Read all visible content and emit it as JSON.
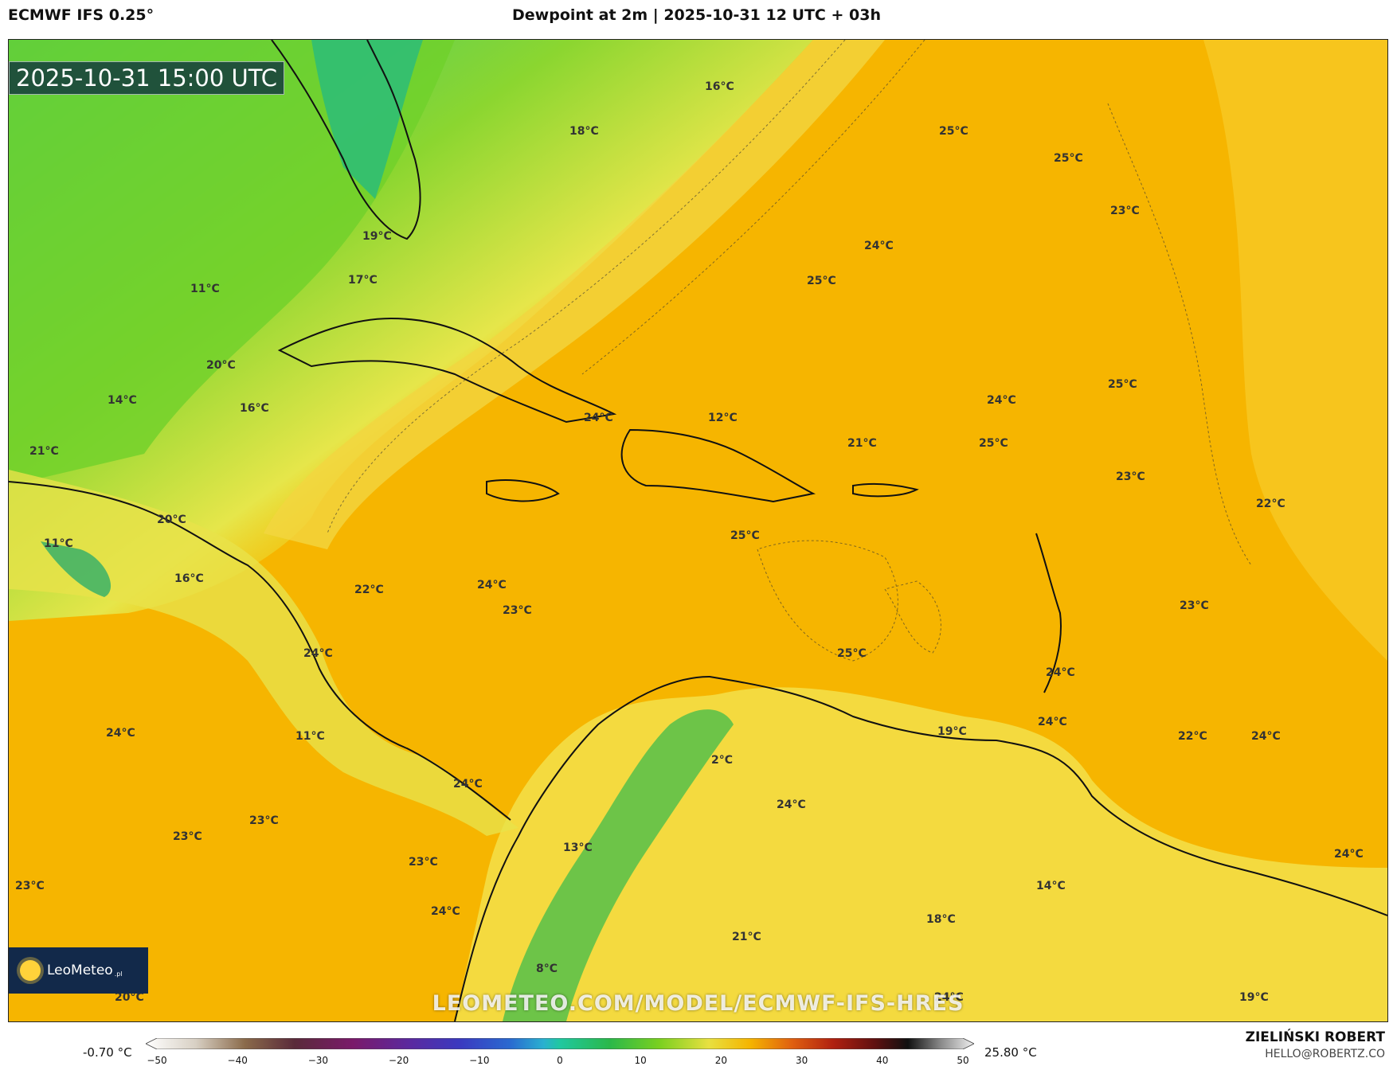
{
  "header": {
    "model": "ECMWF IFS 0.25°",
    "title": "Dewpoint at 2m | 2025-10-31 12 UTC + 03h"
  },
  "map": {
    "valid_time": "2025-10-31 15:00 UTC",
    "watermark": "LEOMETEO.COM/MODEL/ECMWF-IFS-HRES",
    "logo": {
      "name": "LeoMeteo",
      "suffix": ".pl"
    },
    "temperature_labels": [
      "16°C",
      "18°C",
      "25°C",
      "25°C",
      "23°C",
      "19°C",
      "24°C",
      "11°C",
      "25°C",
      "17°C",
      "20°C",
      "14°C",
      "16°C",
      "24°C",
      "12°C",
      "24°C",
      "25°C",
      "21°C",
      "25°C",
      "21°C",
      "23°C",
      "22°C",
      "20°C",
      "25°C",
      "11°C",
      "16°C",
      "22°C",
      "24°C",
      "23°C",
      "24°C",
      "23°C",
      "25°C",
      "24°C",
      "24°C",
      "19°C",
      "24°C",
      "22°C",
      "24°C",
      "11°C",
      "2°C",
      "24°C",
      "24°C",
      "23°C",
      "23°C",
      "13°C",
      "23°C",
      "23°C",
      "24°C",
      "24°C",
      "14°C",
      "18°C",
      "21°C",
      "8°C",
      "20°C",
      "24°C",
      "19°C"
    ]
  },
  "legend": {
    "min_label": "-0.70 °C",
    "max_label": "25.80 °C",
    "ticks": [
      "−50",
      "−40",
      "−30",
      "−20",
      "−10",
      "0",
      "10",
      "20",
      "30",
      "40",
      "50"
    ]
  },
  "author": {
    "name": "ZIELIŃSKI ROBERT",
    "email": "HELLO@ROBERTZ.CO"
  }
}
